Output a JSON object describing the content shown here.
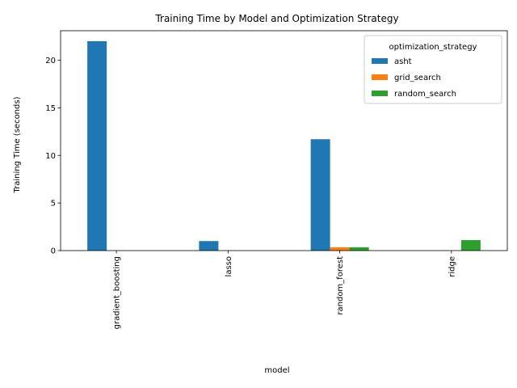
{
  "chart_data": {
    "type": "bar",
    "title": "Training Time by Model and Optimization Strategy",
    "xlabel": "model",
    "ylabel": "Training Time (seconds)",
    "categories": [
      "gradient_boosting",
      "lasso",
      "random_forest",
      "ridge"
    ],
    "series": [
      {
        "name": "asht",
        "color": "#1f77b4",
        "values": [
          22.0,
          1.0,
          11.7,
          0
        ]
      },
      {
        "name": "grid_search",
        "color": "#ff7f0e",
        "values": [
          0,
          0,
          0.35,
          0
        ]
      },
      {
        "name": "random_search",
        "color": "#2ca02c",
        "values": [
          0,
          0,
          0.35,
          1.1
        ]
      }
    ],
    "ylim": [
      0,
      23.1
    ],
    "yticks": [
      0,
      5,
      10,
      15,
      20
    ],
    "legend": {
      "title": "optimization_strategy",
      "position": "top-right"
    },
    "grid": false
  }
}
